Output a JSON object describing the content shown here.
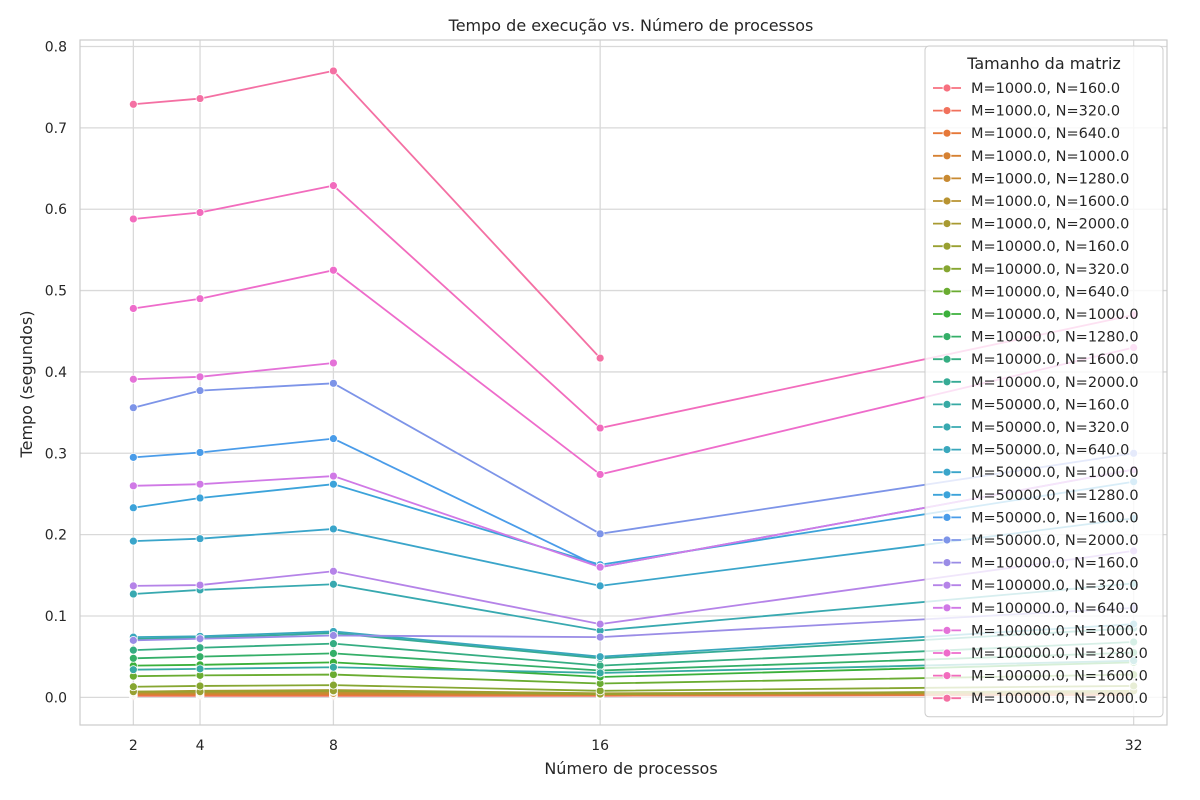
{
  "chart_data": {
    "type": "line",
    "title": "Tempo de execução vs. Número de processos",
    "xlabel": "Número de processos",
    "ylabel": "Tempo (segundos)",
    "x": [
      2,
      4,
      8,
      16,
      32
    ],
    "x_tick_labels": [
      "2",
      "4",
      "8",
      "16",
      "32"
    ],
    "xlim": [
      0.4,
      33.0
    ],
    "ylim": [
      -0.034,
      0.808
    ],
    "y_ticks": [
      0.0,
      0.1,
      0.2,
      0.3,
      0.4,
      0.5,
      0.6,
      0.7,
      0.8
    ],
    "y_tick_labels": [
      "0.0",
      "0.1",
      "0.2",
      "0.3",
      "0.4",
      "0.5",
      "0.6",
      "0.7",
      "0.8"
    ],
    "grid": true,
    "legend_title": "Tamanho da matriz",
    "legend_position": "top-right",
    "series": [
      {
        "name": "M=1000.0, N=160.0",
        "color": "#f7707f",
        "values": [
          0.002,
          0.002,
          0.002,
          0.002,
          0.003
        ]
      },
      {
        "name": "M=1000.0, N=320.0",
        "color": "#f1715c",
        "values": [
          0.002,
          0.002,
          0.002,
          0.002,
          0.003
        ]
      },
      {
        "name": "M=1000.0, N=640.0",
        "color": "#e67839",
        "values": [
          0.003,
          0.003,
          0.003,
          0.003,
          0.004
        ]
      },
      {
        "name": "M=1000.0, N=1000.0",
        "color": "#d68132",
        "values": [
          0.004,
          0.004,
          0.004,
          0.003,
          0.004
        ]
      },
      {
        "name": "M=1000.0, N=1280.0",
        "color": "#c88a32",
        "values": [
          0.005,
          0.005,
          0.005,
          0.004,
          0.005
        ]
      },
      {
        "name": "M=1000.0, N=1600.0",
        "color": "#b89331",
        "values": [
          0.006,
          0.006,
          0.007,
          0.004,
          0.006
        ]
      },
      {
        "name": "M=1000.0, N=2000.0",
        "color": "#a89a31",
        "values": [
          0.007,
          0.008,
          0.009,
          0.005,
          0.007
        ]
      },
      {
        "name": "M=10000.0, N=160.0",
        "color": "#99a031",
        "values": [
          0.007,
          0.007,
          0.008,
          0.004,
          0.008
        ]
      },
      {
        "name": "M=10000.0, N=320.0",
        "color": "#86a631",
        "values": [
          0.013,
          0.014,
          0.015,
          0.008,
          0.014
        ]
      },
      {
        "name": "M=10000.0, N=640.0",
        "color": "#6aac31",
        "values": [
          0.026,
          0.027,
          0.028,
          0.017,
          0.028
        ]
      },
      {
        "name": "M=10000.0, N=1000.0",
        "color": "#3bb03b",
        "values": [
          0.039,
          0.04,
          0.043,
          0.025,
          0.043
        ]
      },
      {
        "name": "M=10000.0, N=1280.0",
        "color": "#34af68",
        "values": [
          0.048,
          0.05,
          0.054,
          0.033,
          0.055
        ]
      },
      {
        "name": "M=10000.0, N=1600.0",
        "color": "#35ad82",
        "values": [
          0.058,
          0.061,
          0.066,
          0.039,
          0.068
        ]
      },
      {
        "name": "M=10000.0, N=2000.0",
        "color": "#36ab95",
        "values": [
          0.072,
          0.073,
          0.079,
          0.048,
          0.085
        ]
      },
      {
        "name": "M=50000.0, N=160.0",
        "color": "#37aaa4",
        "values": [
          0.034,
          0.035,
          0.037,
          0.03,
          0.045
        ]
      },
      {
        "name": "M=50000.0, N=320.0",
        "color": "#38a9b0",
        "values": [
          0.127,
          0.132,
          0.139,
          0.082,
          0.14
        ]
      },
      {
        "name": "M=50000.0, N=640.0",
        "color": "#39a7bc",
        "values": [
          0.074,
          0.075,
          0.081,
          0.05,
          0.09
        ]
      },
      {
        "name": "M=50000.0, N=1000.0",
        "color": "#3aa5ca",
        "values": [
          0.192,
          0.195,
          0.207,
          0.137,
          0.22
        ]
      },
      {
        "name": "M=50000.0, N=1280.0",
        "color": "#3ca3da",
        "values": [
          0.233,
          0.245,
          0.262,
          0.163,
          0.265
        ]
      },
      {
        "name": "M=50000.0, N=1600.0",
        "color": "#4a9ce9",
        "values": [
          0.295,
          0.301,
          0.318,
          0.16,
          0.28
        ]
      },
      {
        "name": "M=50000.0, N=2000.0",
        "color": "#7d94e8",
        "values": [
          0.356,
          0.377,
          0.386,
          0.201,
          0.3
        ]
      },
      {
        "name": "M=100000.0, N=160.0",
        "color": "#9a8ce6",
        "values": [
          0.07,
          0.072,
          0.076,
          0.074,
          0.11
        ]
      },
      {
        "name": "M=100000.0, N=320.0",
        "color": "#b583e8",
        "values": [
          0.137,
          0.138,
          0.155,
          0.09,
          0.18
        ]
      },
      {
        "name": "M=100000.0, N=640.0",
        "color": "#d079e6",
        "values": [
          0.26,
          0.262,
          0.272,
          0.16,
          0.28
        ]
      },
      {
        "name": "M=100000.0, N=1000.0",
        "color": "#e472d8",
        "values": [
          0.391,
          0.394,
          0.411,
          null,
          null
        ]
      },
      {
        "name": "M=100000.0, N=1280.0",
        "color": "#ee6ccb",
        "values": [
          0.478,
          0.49,
          0.525,
          0.274,
          0.43
        ]
      },
      {
        "name": "M=100000.0, N=1600.0",
        "color": "#f26cbd",
        "values": [
          0.588,
          0.596,
          0.629,
          0.331,
          0.47
        ]
      },
      {
        "name": "M=100000.0, N=2000.0",
        "color": "#f470a3",
        "values": [
          0.729,
          0.736,
          0.77,
          0.417,
          null
        ]
      }
    ]
  }
}
